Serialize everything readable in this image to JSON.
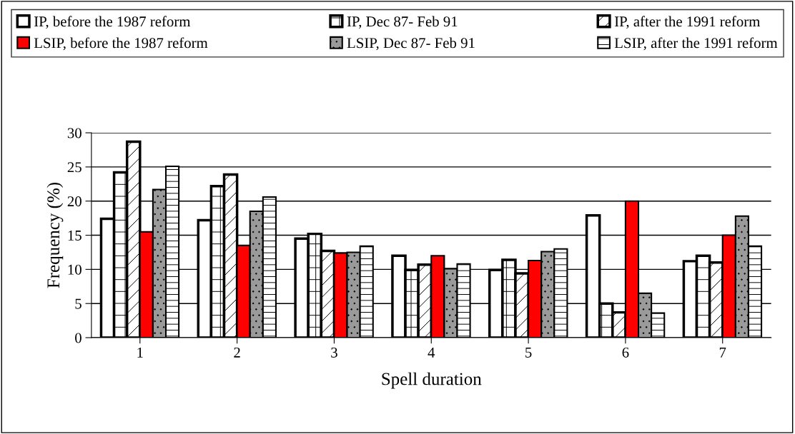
{
  "chart_data": {
    "type": "bar",
    "xlabel": "Spell duration",
    "ylabel": "Frequency (%)",
    "categories": [
      "1",
      "2",
      "3",
      "4",
      "5",
      "6",
      "7"
    ],
    "series": [
      {
        "name": "IP, before the 1987 reform",
        "color": "#ffffff",
        "values": [
          17.4,
          17.2,
          14.5,
          12.0,
          9.9,
          17.9,
          11.2
        ]
      },
      {
        "name": "IP, Dec 87- Feb 91",
        "color": "#ffffff",
        "values": [
          24.2,
          22.2,
          15.2,
          9.9,
          11.4,
          5.0,
          12.0
        ]
      },
      {
        "name": "IP, after the 1991 reform",
        "color": "#ffffff",
        "values": [
          28.7,
          23.9,
          12.7,
          10.7,
          9.4,
          3.7,
          11.0
        ]
      },
      {
        "name": "LSIP, before the 1987 reform",
        "color": "#ff0000",
        "values": [
          15.5,
          13.5,
          12.4,
          12.0,
          11.3,
          20.0,
          15.0
        ]
      },
      {
        "name": "LSIP, Dec 87- Feb 91",
        "color": "#9a9a9a",
        "values": [
          21.7,
          18.5,
          12.5,
          10.1,
          12.6,
          6.5,
          17.8
        ]
      },
      {
        "name": "LSIP, after the 1991 reform",
        "color": "#ffffff",
        "values": [
          25.1,
          20.6,
          13.4,
          10.8,
          13.0,
          3.6,
          13.4
        ]
      }
    ],
    "ylim": [
      0,
      30
    ],
    "yticks": [
      0,
      5,
      10,
      15,
      20,
      25,
      30
    ],
    "grid": "y",
    "legend": "top"
  }
}
